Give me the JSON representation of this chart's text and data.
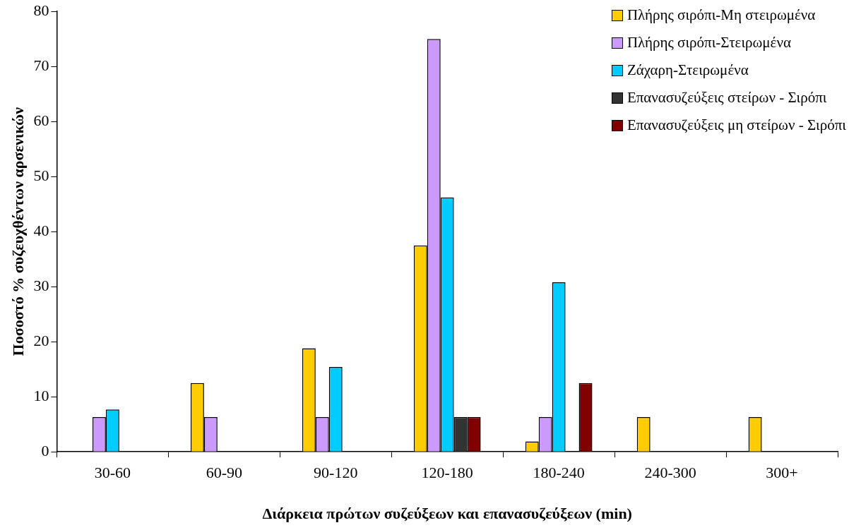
{
  "chart_data": {
    "type": "bar",
    "xlabel": "Διάρκεια πρώτων συζεύξεων και επανασυζεύξεων (min)",
    "ylabel": "Ποσοστό % συζευχθέντων αρσενικών",
    "categories": [
      "30-60",
      "60-90",
      "90-120",
      "120-180",
      "180-240",
      "240-300",
      "300+"
    ],
    "series": [
      {
        "name": "Πλήρης σιρόπι-Μη στειρωμένα",
        "color": "#ffcc00",
        "values": [
          0,
          12.5,
          18.8,
          37.5,
          1.9,
          6.3,
          6.3
        ]
      },
      {
        "name": "Πλήρης σιρόπι-Στειρωμένα",
        "color": "#cc99ff",
        "values": [
          6.3,
          6.3,
          6.3,
          75,
          6.3,
          0,
          0
        ]
      },
      {
        "name": "Ζάχαρη-Στειρωμένα",
        "color": "#00ccff",
        "values": [
          7.7,
          0,
          15.4,
          46.2,
          30.8,
          0,
          0
        ]
      },
      {
        "name": "Επανασυζεύξεις στείρων - Σιρόπι",
        "color": "#333333",
        "values": [
          0,
          0,
          0,
          6.3,
          0,
          0,
          0
        ]
      },
      {
        "name": "Επανασυζεύξεις μη στείρων - Σιρόπι",
        "color": "#800000",
        "values": [
          0,
          0,
          0,
          6.3,
          12.5,
          0,
          0
        ]
      }
    ],
    "ylim": [
      0,
      80
    ],
    "yticks": [
      0,
      10,
      20,
      30,
      40,
      50,
      60,
      70,
      80
    ],
    "grid": false,
    "legend": "top right"
  }
}
